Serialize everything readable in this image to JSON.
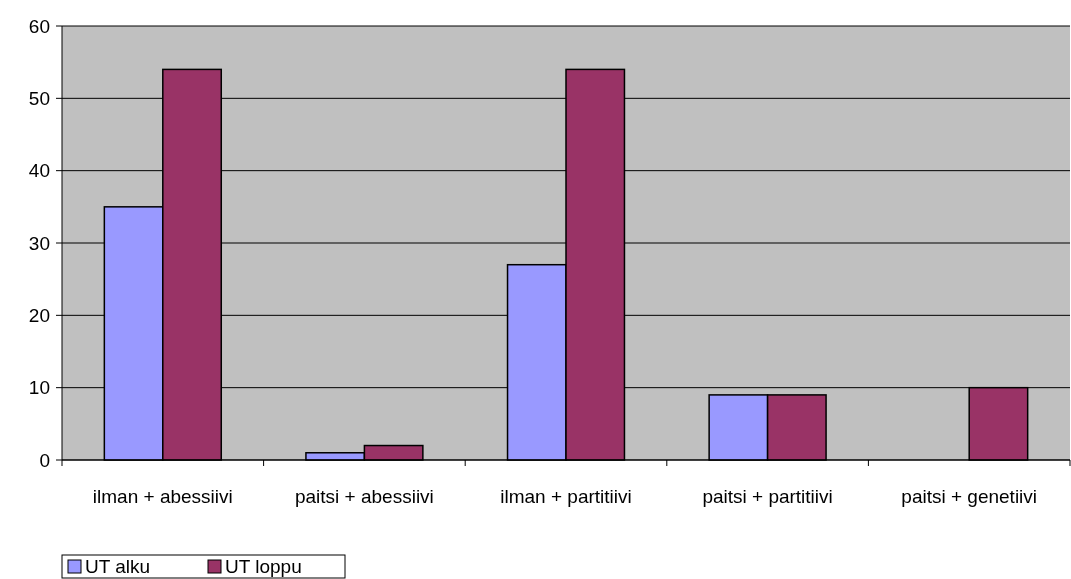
{
  "chart_data": {
    "type": "bar",
    "categories": [
      "ilman + abessiivi",
      "paitsi + abessiivi",
      "ilman + partitiivi",
      "paitsi + partitiivi",
      "paitsi + genetiivi"
    ],
    "series": [
      {
        "name": "UT alku",
        "color": "#9999ff",
        "values": [
          35,
          1,
          27,
          9,
          0
        ]
      },
      {
        "name": "UT loppu",
        "color": "#993366",
        "values": [
          54,
          2,
          54,
          9,
          10
        ]
      }
    ],
    "ylim": [
      0,
      60
    ],
    "yticks": [
      0,
      10,
      20,
      30,
      40,
      50,
      60
    ],
    "grid": "y",
    "legend": "bottom left"
  }
}
